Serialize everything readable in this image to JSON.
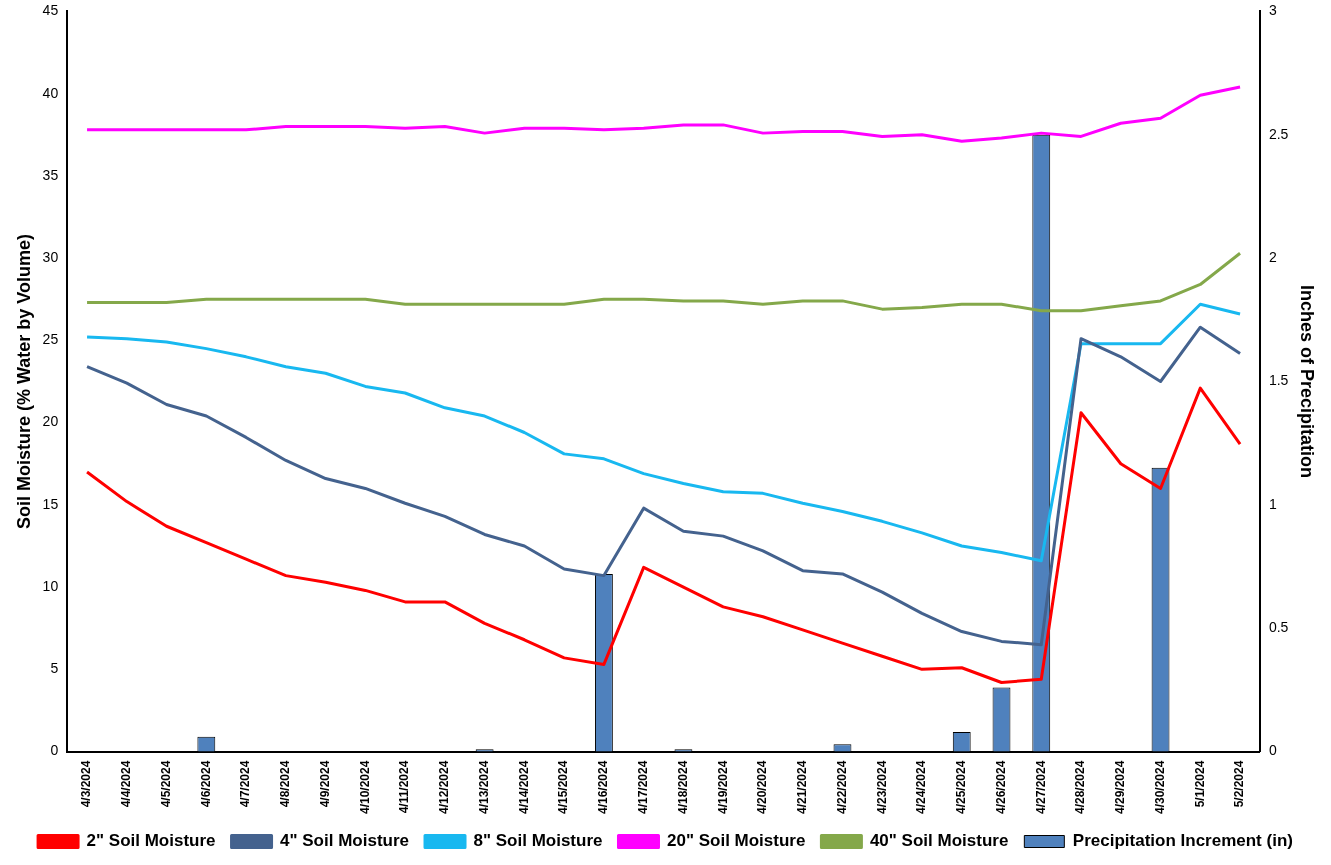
{
  "chart_data": {
    "type": "line",
    "ylabel": "Soil Moisture (% Water by Volume)",
    "y2label": "Inches of Precipitation",
    "categories": [
      "4/3/2024",
      "4/4/2024",
      "4/5/2024",
      "4/6/2024",
      "4/7/2024",
      "4/8/2024",
      "4/9/2024",
      "4/10/2024",
      "4/11/2024",
      "4/12/2024",
      "4/13/2024",
      "4/14/2024",
      "4/15/2024",
      "4/16/2024",
      "4/17/2024",
      "4/18/2024",
      "4/19/2024",
      "4/20/2024",
      "4/21/2024",
      "4/22/2024",
      "4/23/2024",
      "4/24/2024",
      "4/25/2024",
      "4/26/2024",
      "4/27/2024",
      "4/28/2024",
      "4/29/2024",
      "4/30/2024",
      "5/1/2024",
      "5/2/2024"
    ],
    "series": [
      {
        "name": "Precipitation Increment (in)",
        "type": "bar",
        "axis": "y2",
        "color": "#4f81bd",
        "values": [
          0,
          0,
          0,
          0.06,
          0,
          0,
          0,
          0,
          0,
          0,
          0.01,
          0,
          0,
          0.72,
          0,
          0.01,
          0,
          0,
          0,
          0.03,
          0,
          0,
          0.08,
          0.26,
          2.5,
          0,
          0,
          1.15,
          0,
          0
        ]
      },
      {
        "name": "2\" Soil Moisture",
        "color": "#ff0000",
        "values": [
          17.0,
          15.2,
          13.7,
          12.7,
          11.7,
          10.7,
          10.3,
          9.8,
          9.1,
          9.1,
          7.8,
          6.8,
          5.7,
          5.3,
          11.2,
          10.0,
          8.8,
          8.2,
          7.4,
          6.6,
          5.8,
          5.0,
          5.1,
          4.2,
          4.4,
          20.6,
          17.5,
          16.0,
          22.1,
          18.7
        ]
      },
      {
        "name": "4\" Soil Moisture",
        "color": "#44628e",
        "values": [
          23.4,
          22.4,
          21.1,
          20.4,
          19.1,
          17.7,
          16.6,
          16.0,
          15.1,
          14.3,
          13.2,
          12.5,
          11.1,
          10.7,
          14.8,
          13.4,
          13.1,
          12.2,
          11.0,
          10.8,
          9.7,
          8.4,
          7.3,
          6.7,
          6.5,
          25.1,
          24.0,
          22.5,
          25.8,
          24.2
        ]
      },
      {
        "name": "8\" Soil Moisture",
        "color": "#18b8f0",
        "values": [
          25.2,
          25.1,
          24.9,
          24.5,
          24.0,
          23.4,
          23.0,
          22.2,
          21.8,
          20.9,
          20.4,
          19.4,
          18.1,
          17.8,
          16.9,
          16.3,
          15.8,
          15.7,
          15.1,
          14.6,
          14.0,
          13.3,
          12.5,
          12.1,
          11.6,
          24.8,
          24.8,
          24.8,
          27.2,
          26.6
        ]
      },
      {
        "name": "20\" Soil Moisture",
        "color": "#ff00ff",
        "values": [
          37.8,
          37.8,
          37.8,
          37.8,
          37.8,
          38.0,
          38.0,
          38.0,
          37.9,
          38.0,
          37.6,
          37.9,
          37.9,
          37.8,
          37.9,
          38.1,
          38.1,
          37.6,
          37.7,
          37.7,
          37.4,
          37.5,
          37.1,
          37.3,
          37.6,
          37.4,
          38.2,
          38.5,
          39.9,
          40.4
        ]
      },
      {
        "name": "40\" Soil Moisture",
        "color": "#84a84a",
        "values": [
          27.3,
          27.3,
          27.3,
          27.5,
          27.5,
          27.5,
          27.5,
          27.5,
          27.2,
          27.2,
          27.2,
          27.2,
          27.2,
          27.5,
          27.5,
          27.4,
          27.4,
          27.2,
          27.4,
          27.4,
          26.9,
          27.0,
          27.2,
          27.2,
          26.8,
          26.8,
          27.1,
          27.4,
          28.4,
          30.3
        ]
      }
    ],
    "ylim": [
      0,
      45
    ],
    "yticks": [
      0,
      5,
      10,
      15,
      20,
      25,
      30,
      35,
      40,
      45
    ],
    "y2lim": [
      0,
      3
    ],
    "y2ticks": [
      0,
      0.5,
      1,
      1.5,
      2,
      2.5,
      3
    ],
    "grid": false,
    "legend": "bottom",
    "marker": "none",
    "line_style": "solid"
  }
}
